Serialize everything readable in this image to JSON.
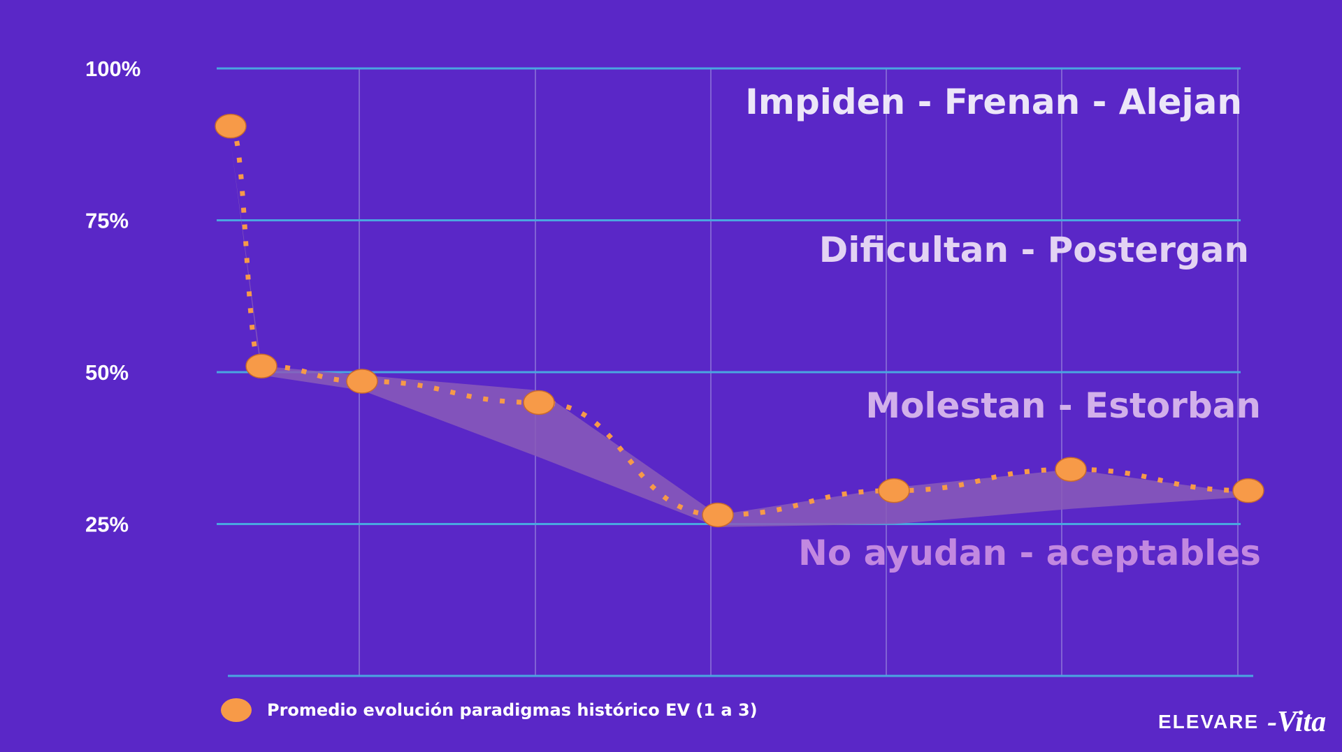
{
  "chart_data": {
    "type": "line",
    "yticks": [
      "100%",
      "75%",
      "50%",
      "25%"
    ],
    "ytick_values": [
      100,
      75,
      50,
      25
    ],
    "ylim": [
      0,
      100
    ],
    "x": [
      1,
      2,
      3,
      4,
      5,
      6,
      7,
      8
    ],
    "grid": true,
    "series": [
      {
        "name": "Promedio evolución paradigmas histórico EV (1 a 3)",
        "values": [
          90.5,
          51,
          48.5,
          45,
          26.5,
          30.5,
          34,
          30.5
        ],
        "color": "#f79a48",
        "band_upper": [
          88,
          51,
          49.5,
          47,
          26.5,
          31,
          34,
          30
        ],
        "band_lower": [
          88,
          49.5,
          47,
          36,
          24.5,
          25,
          27.5,
          29.5
        ]
      }
    ],
    "zones": [
      {
        "label": "Impiden - Frenan - Alejan",
        "color": "#ece6f8"
      },
      {
        "label": "Dificultan - Postergan",
        "color": "#e3d3f3"
      },
      {
        "label": "Molestan - Estorban",
        "color": "#d2b0ea"
      },
      {
        "label": "No ayudan - aceptables",
        "color": "#c288e0"
      }
    ],
    "legend": {
      "label": "Promedio evolución paradigmas histórico EV (1 a 3)",
      "position": "bottom-left"
    },
    "colors": {
      "background": "#5a27c7",
      "h_grid": "#4aa6e0",
      "v_grid": "#8e76d8",
      "band": "#8a5cb8",
      "marker": "#f79a48"
    }
  },
  "brand": {
    "name": "ELEVARE",
    "suffix": "-Vita"
  }
}
